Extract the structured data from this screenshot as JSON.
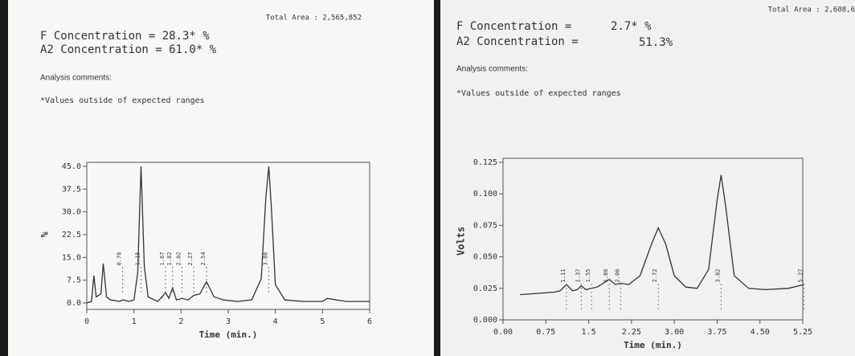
{
  "chart_data": [
    {
      "type": "line",
      "texts": [
        "F Concentration =  28.3* %",
        "A2 Concentration = 61.0* %",
        "Total Area : 2,565,852",
        "Analysis comments:",
        "*Values outside of expected ranges"
      ],
      "y_label": "%",
      "x_label": "Time (min.)",
      "xlim": [
        0,
        6
      ],
      "xticks": [
        0,
        1,
        2,
        3,
        4,
        5,
        6
      ],
      "ylim": [
        0,
        45
      ],
      "yticks": [
        {
          "value": 0,
          "label": "0.0"
        },
        7.5,
        {
          "value": 15,
          "label": "15.0"
        },
        22.5,
        {
          "value": 30,
          "label": "30.0"
        },
        37.5,
        {
          "value": 45,
          "label": "45.0"
        }
      ],
      "color": "#333333",
      "x": [
        0,
        0.1,
        0.15,
        0.2,
        0.3,
        0.35,
        0.42,
        0.5,
        0.7,
        0.76,
        0.9,
        1.0,
        1.08,
        1.15,
        1.22,
        1.3,
        1.5,
        1.6,
        1.67,
        1.74,
        1.82,
        1.9,
        2.02,
        2.15,
        2.27,
        2.4,
        2.54,
        2.7,
        2.9,
        3.2,
        3.5,
        3.7,
        3.8,
        3.86,
        3.92,
        4.0,
        4.2,
        4.6,
        5.0,
        5.1,
        5.5,
        6.0
      ],
      "values": [
        0,
        0.5,
        9,
        2,
        3,
        13,
        2,
        1,
        0.5,
        1,
        0.5,
        1,
        10,
        45,
        12,
        2,
        0.5,
        2,
        3.5,
        1.5,
        5,
        1,
        1.5,
        1,
        2.5,
        3,
        7,
        2,
        1,
        0.5,
        1,
        8,
        35,
        45,
        30,
        6,
        1,
        0.5,
        0.5,
        1.5,
        0.5,
        0.5
      ],
      "peaks": [
        0.76,
        1.15,
        1.67,
        1.82,
        2.02,
        2.27,
        2.54,
        3.86
      ]
    },
    {
      "type": "line",
      "texts": [
        "F Concentration =",
        "2.7* %",
        "A2 Concentration =",
        "51.3%",
        "Total Area : 2,608,6",
        "Analysis comments:",
        "*Values outside of expected ranges"
      ],
      "y_label": "Volts",
      "x_label": "Time (min.)",
      "xlim": [
        0,
        5.25
      ],
      "xticks": [
        {
          "value": 0,
          "label": "0.00"
        },
        0.75,
        1.5,
        2.25,
        {
          "value": 3,
          "label": "3.00"
        },
        3.75,
        {
          "value": 4.5,
          "label": "4.50"
        },
        5.25
      ],
      "ylim": [
        0,
        0.125
      ],
      "yticks": [
        {
          "value": 0,
          "label": "0.000"
        },
        0.025,
        {
          "value": 0.05,
          "label": "0.050"
        },
        0.075,
        {
          "value": 0.1,
          "label": "0.100"
        },
        0.125
      ],
      "color": "#333333",
      "x": [
        0.3,
        0.6,
        0.9,
        1.0,
        1.11,
        1.22,
        1.3,
        1.37,
        1.45,
        1.55,
        1.65,
        1.86,
        1.97,
        2.06,
        2.2,
        2.4,
        2.6,
        2.72,
        2.85,
        3.0,
        3.2,
        3.4,
        3.6,
        3.75,
        3.82,
        3.9,
        4.05,
        4.3,
        4.6,
        5.0,
        5.27
      ],
      "values": [
        0.02,
        0.021,
        0.022,
        0.023,
        0.028,
        0.023,
        0.024,
        0.027,
        0.024,
        0.025,
        0.026,
        0.032,
        0.028,
        0.029,
        0.028,
        0.035,
        0.06,
        0.073,
        0.06,
        0.035,
        0.026,
        0.025,
        0.04,
        0.095,
        0.115,
        0.09,
        0.035,
        0.025,
        0.024,
        0.025,
        0.028
      ],
      "peaks": [
        1.11,
        1.37,
        1.55,
        1.86,
        2.06,
        2.72,
        3.82,
        5.27
      ]
    }
  ]
}
